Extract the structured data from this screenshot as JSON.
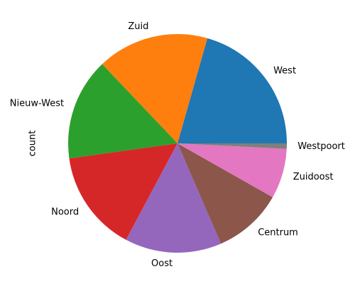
{
  "chart_data": {
    "type": "pie",
    "ylabel": "count",
    "slices": [
      {
        "label": "West",
        "value": 20.6,
        "color": "#1f77b4"
      },
      {
        "label": "Zuid",
        "value": 16.5,
        "color": "#ff7f0e"
      },
      {
        "label": "Nieuw-West",
        "value": 15.1,
        "color": "#2ca02c"
      },
      {
        "label": "Noord",
        "value": 15.0,
        "color": "#d62728"
      },
      {
        "label": "Oost",
        "value": 14.3,
        "color": "#9467bd"
      },
      {
        "label": "Centrum",
        "value": 10.3,
        "color": "#8c564b"
      },
      {
        "label": "Zuidoost",
        "value": 7.4,
        "color": "#e377c2"
      },
      {
        "label": "Westpoort",
        "value": 0.8,
        "color": "#7f7f7f"
      }
    ]
  }
}
